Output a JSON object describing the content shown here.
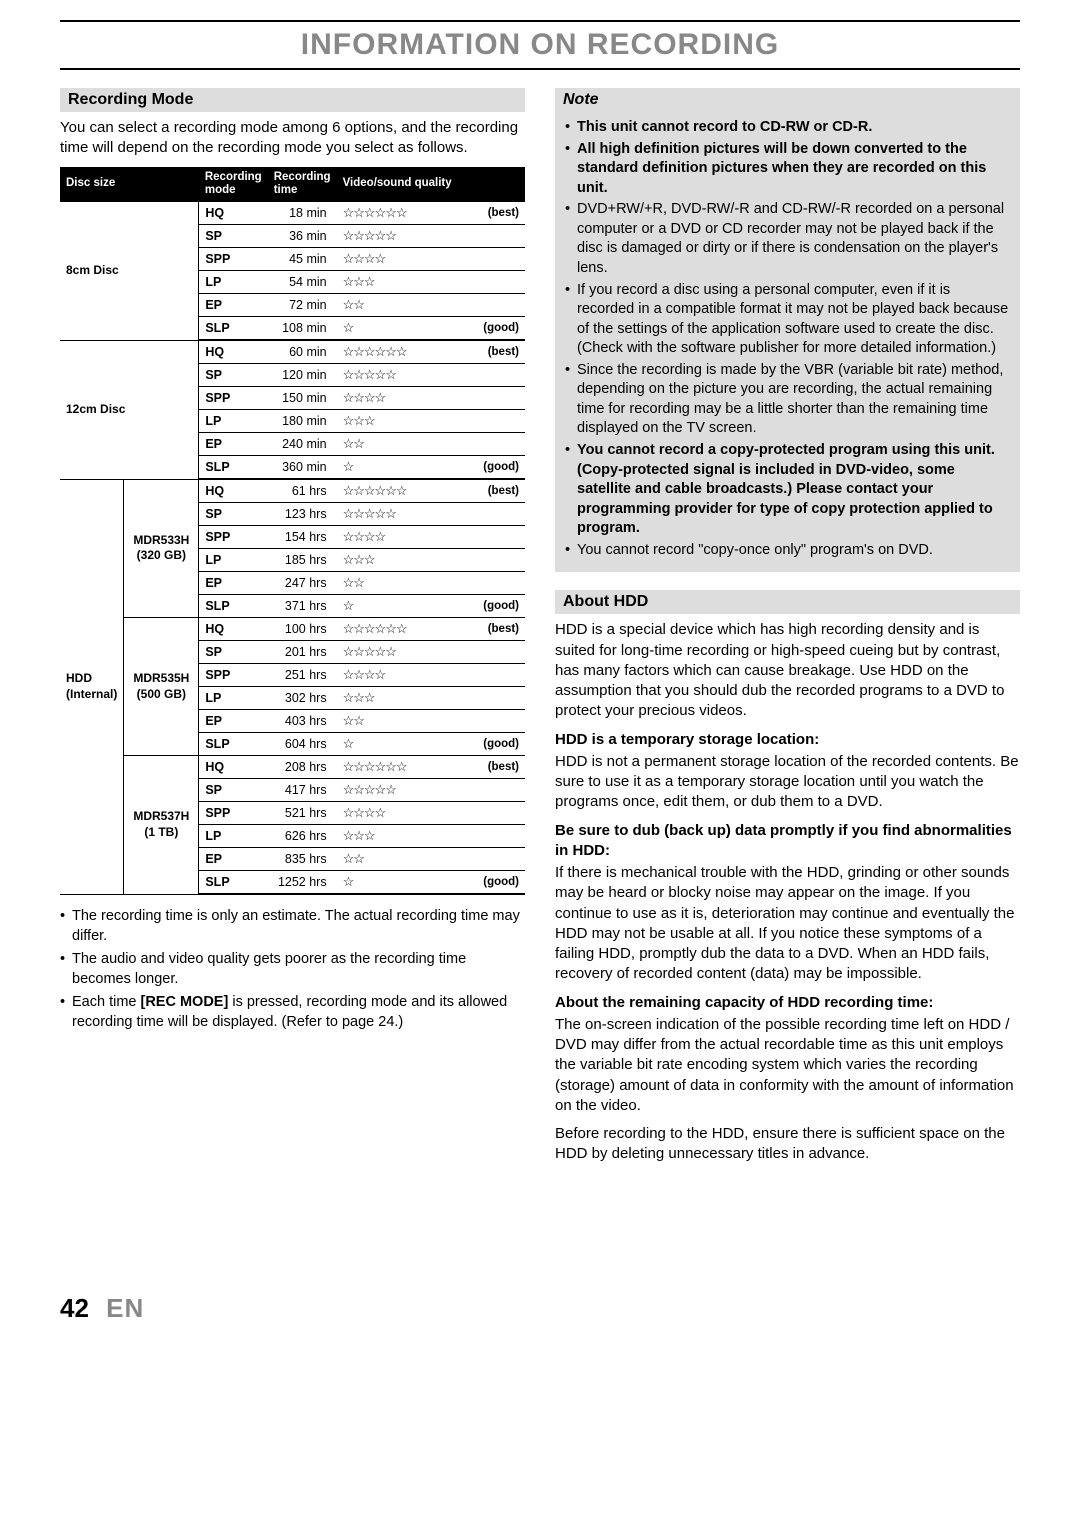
{
  "page_title": "INFORMATION ON RECORDING",
  "left": {
    "header": "Recording Mode",
    "intro": "You can select a recording mode among 6 options, and the recording time will depend on the recording mode you select as follows.",
    "table_headers": {
      "c1": "Disc size",
      "c2": "Recording mode",
      "c3": "Recording time",
      "c4": "Video/sound quality"
    },
    "groups": [
      {
        "disc": "8cm Disc",
        "sub": "",
        "rows": [
          {
            "mode": "HQ",
            "time": "18 min",
            "stars": 6,
            "label": "(best)"
          },
          {
            "mode": "SP",
            "time": "36 min",
            "stars": 5,
            "label": ""
          },
          {
            "mode": "SPP",
            "time": "45 min",
            "stars": 4,
            "label": ""
          },
          {
            "mode": "LP",
            "time": "54 min",
            "stars": 3,
            "label": ""
          },
          {
            "mode": "EP",
            "time": "72 min",
            "stars": 2,
            "label": ""
          },
          {
            "mode": "SLP",
            "time": "108 min",
            "stars": 1,
            "label": "(good)"
          }
        ]
      },
      {
        "disc": "12cm Disc",
        "sub": "",
        "rows": [
          {
            "mode": "HQ",
            "time": "60 min",
            "stars": 6,
            "label": "(best)"
          },
          {
            "mode": "SP",
            "time": "120 min",
            "stars": 5,
            "label": ""
          },
          {
            "mode": "SPP",
            "time": "150 min",
            "stars": 4,
            "label": ""
          },
          {
            "mode": "LP",
            "time": "180 min",
            "stars": 3,
            "label": ""
          },
          {
            "mode": "EP",
            "time": "240 min",
            "stars": 2,
            "label": ""
          },
          {
            "mode": "SLP",
            "time": "360 min",
            "stars": 1,
            "label": "(good)"
          }
        ]
      },
      {
        "disc": "HDD (Internal)",
        "sub": "MDR533H (320 GB)",
        "rows": [
          {
            "mode": "HQ",
            "time": "61 hrs",
            "stars": 6,
            "label": "(best)"
          },
          {
            "mode": "SP",
            "time": "123 hrs",
            "stars": 5,
            "label": ""
          },
          {
            "mode": "SPP",
            "time": "154 hrs",
            "stars": 4,
            "label": ""
          },
          {
            "mode": "LP",
            "time": "185 hrs",
            "stars": 3,
            "label": ""
          },
          {
            "mode": "EP",
            "time": "247 hrs",
            "stars": 2,
            "label": ""
          },
          {
            "mode": "SLP",
            "time": "371 hrs",
            "stars": 1,
            "label": "(good)"
          }
        ]
      },
      {
        "disc": "",
        "sub": "MDR535H (500 GB)",
        "rows": [
          {
            "mode": "HQ",
            "time": "100 hrs",
            "stars": 6,
            "label": "(best)"
          },
          {
            "mode": "SP",
            "time": "201 hrs",
            "stars": 5,
            "label": ""
          },
          {
            "mode": "SPP",
            "time": "251 hrs",
            "stars": 4,
            "label": ""
          },
          {
            "mode": "LP",
            "time": "302 hrs",
            "stars": 3,
            "label": ""
          },
          {
            "mode": "EP",
            "time": "403 hrs",
            "stars": 2,
            "label": ""
          },
          {
            "mode": "SLP",
            "time": "604 hrs",
            "stars": 1,
            "label": "(good)"
          }
        ]
      },
      {
        "disc": "",
        "sub": "MDR537H (1 TB)",
        "rows": [
          {
            "mode": "HQ",
            "time": "208 hrs",
            "stars": 6,
            "label": "(best)"
          },
          {
            "mode": "SP",
            "time": "417 hrs",
            "stars": 5,
            "label": ""
          },
          {
            "mode": "SPP",
            "time": "521 hrs",
            "stars": 4,
            "label": ""
          },
          {
            "mode": "LP",
            "time": "626 hrs",
            "stars": 3,
            "label": ""
          },
          {
            "mode": "EP",
            "time": "835 hrs",
            "stars": 2,
            "label": ""
          },
          {
            "mode": "SLP",
            "time": "1252 hrs",
            "stars": 1,
            "label": "(good)"
          }
        ]
      }
    ],
    "notes": [
      "The recording time is only an estimate. The actual recording time may differ.",
      "The audio and video quality gets poorer as the recording time becomes longer.",
      "Each time <b>[REC MODE]</b> is pressed, recording mode and its allowed recording time will be displayed. (Refer to page 24.)"
    ]
  },
  "right": {
    "note_header": "Note",
    "note_items": [
      {
        "text": "This unit cannot record to CD-RW or CD-R.",
        "bold": true
      },
      {
        "text": "All high definition pictures will be down converted to the standard definition pictures when they are recorded on this unit.",
        "bold": true
      },
      {
        "text": "DVD+RW/+R, DVD-RW/-R and CD-RW/-R recorded on a personal computer or a DVD or CD recorder may not be played back if the disc is damaged or dirty or if there is condensation on the player's lens.",
        "bold": false
      },
      {
        "text": "If you record a disc using a personal computer, even if it is recorded in a compatible format it may not be played back because of the settings of the application software used to create the disc. (Check with the software publisher for more detailed information.)",
        "bold": false
      },
      {
        "text": "Since the recording is made by the VBR (variable bit rate) method, depending on the picture you are recording, the actual remaining time for recording may be a little shorter than the remaining time displayed on the TV screen.",
        "bold": false
      },
      {
        "text": "You cannot record a copy-protected program using this unit. (Copy-protected signal is included in DVD-video, some satellite and cable broadcasts.) Please contact your programming provider for type of copy protection applied to program.",
        "bold": true
      },
      {
        "text": "You cannot record \"copy-once only\" program's on DVD.",
        "bold": false
      }
    ],
    "hdd_header": "About HDD",
    "hdd_intro": "HDD is a special device which has high recording density and is suited for long-time recording or high-speed cueing but by contrast, has many factors which can cause breakage. Use HDD on the assumption that you should dub the recorded programs to a DVD to protect your precious videos.",
    "hdd_sections": [
      {
        "title": "HDD is a temporary storage location:",
        "body": "HDD is not a permanent storage location of the recorded contents. Be sure to use it as a temporary storage location until you watch the programs once, edit them, or dub them to a DVD."
      },
      {
        "title": "Be sure to dub (back up) data promptly if you find abnormalities in HDD:",
        "body": "If there is mechanical trouble with the HDD, grinding or other sounds may be heard or blocky noise may appear on the image. If you continue to use as it is, deterioration may continue and eventually the HDD may not be usable at all. If you notice these symptoms of a failing HDD, promptly dub the data to a DVD. When an HDD fails, recovery of recorded content (data) may be impossible."
      },
      {
        "title": "About the remaining capacity of HDD recording time:",
        "body": "The on-screen indication of the possible recording time left on HDD / DVD may differ from the actual recordable time as this unit employs the variable bit rate encoding system which varies the recording (storage) amount of data in conformity with the amount of information on the video."
      }
    ],
    "hdd_outro": "Before recording to the HDD, ensure there is sufficient space on the HDD by deleting unnecessary titles in advance."
  },
  "footer": {
    "page": "42",
    "lang": "EN"
  }
}
